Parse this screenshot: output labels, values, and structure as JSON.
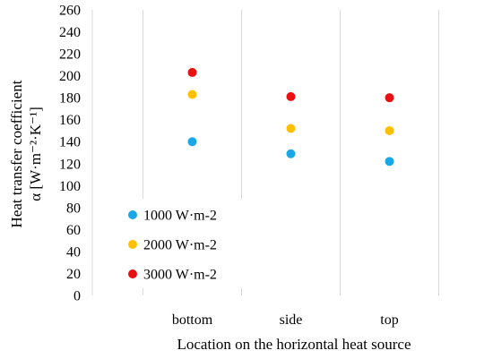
{
  "chart_data": {
    "type": "scatter",
    "categories": [
      "bottom",
      "side",
      "top"
    ],
    "xlabel": "Location on the horizontal heat source",
    "ylabel_line1": "Heat transfer coefficient",
    "ylabel_line2": "α [W·m⁻²·K⁻¹]",
    "ylim": [
      0,
      260
    ],
    "yticks": [
      0,
      20,
      40,
      60,
      80,
      100,
      120,
      140,
      160,
      180,
      200,
      220,
      240,
      260
    ],
    "grid": "vertical",
    "legend_position": "bottom-left",
    "series": [
      {
        "name": "1000 W·m-2",
        "color": "#1AA7E8",
        "values": [
          140,
          129,
          122
        ]
      },
      {
        "name": "2000 W·m-2",
        "color": "#FFC000",
        "values": [
          183,
          152,
          150
        ]
      },
      {
        "name": "3000 W·m-2",
        "color": "#E81010",
        "values": [
          203,
          181,
          180
        ]
      }
    ]
  }
}
